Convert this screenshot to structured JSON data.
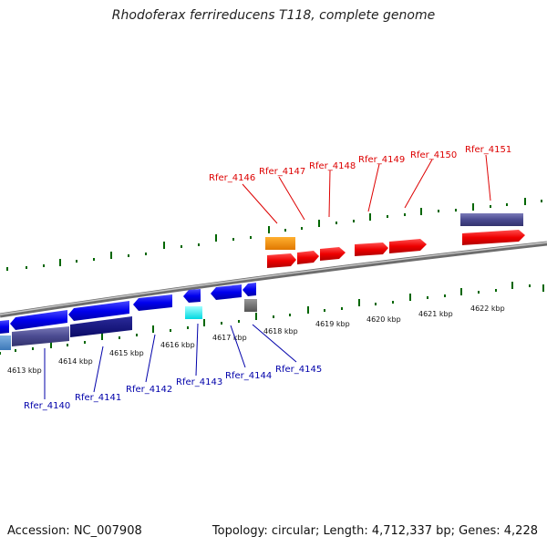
{
  "title": "Rhodoferax ferrireducens T118, complete genome",
  "footer": {
    "accession": "Accession: NC_007908",
    "summary": "Topology: circular; Length: 4,712,337 bp; Genes: 4,228"
  },
  "colors": {
    "forward_gene": "#ee0000",
    "reverse_gene": "#0000ee",
    "backbone": "#888888",
    "tick": "#006600",
    "label_forward": "#dd0000",
    "label_reverse": "#0000aa"
  },
  "scale": {
    "kbp_labels": [
      "4613 kbp",
      "4614 kbp",
      "4615 kbp",
      "4616 kbp",
      "4617 kbp",
      "4618 kbp",
      "4619 kbp",
      "4620 kbp",
      "4621 kbp",
      "4622 kbp"
    ]
  },
  "gene_labels": {
    "forward": [
      "Rfer_4146",
      "Rfer_4147",
      "Rfer_4148",
      "Rfer_4149",
      "Rfer_4150",
      "Rfer_4151"
    ],
    "reverse": [
      "Rfer_4140",
      "Rfer_4141",
      "Rfer_4142",
      "Rfer_4143",
      "Rfer_4144",
      "Rfer_4145"
    ]
  }
}
